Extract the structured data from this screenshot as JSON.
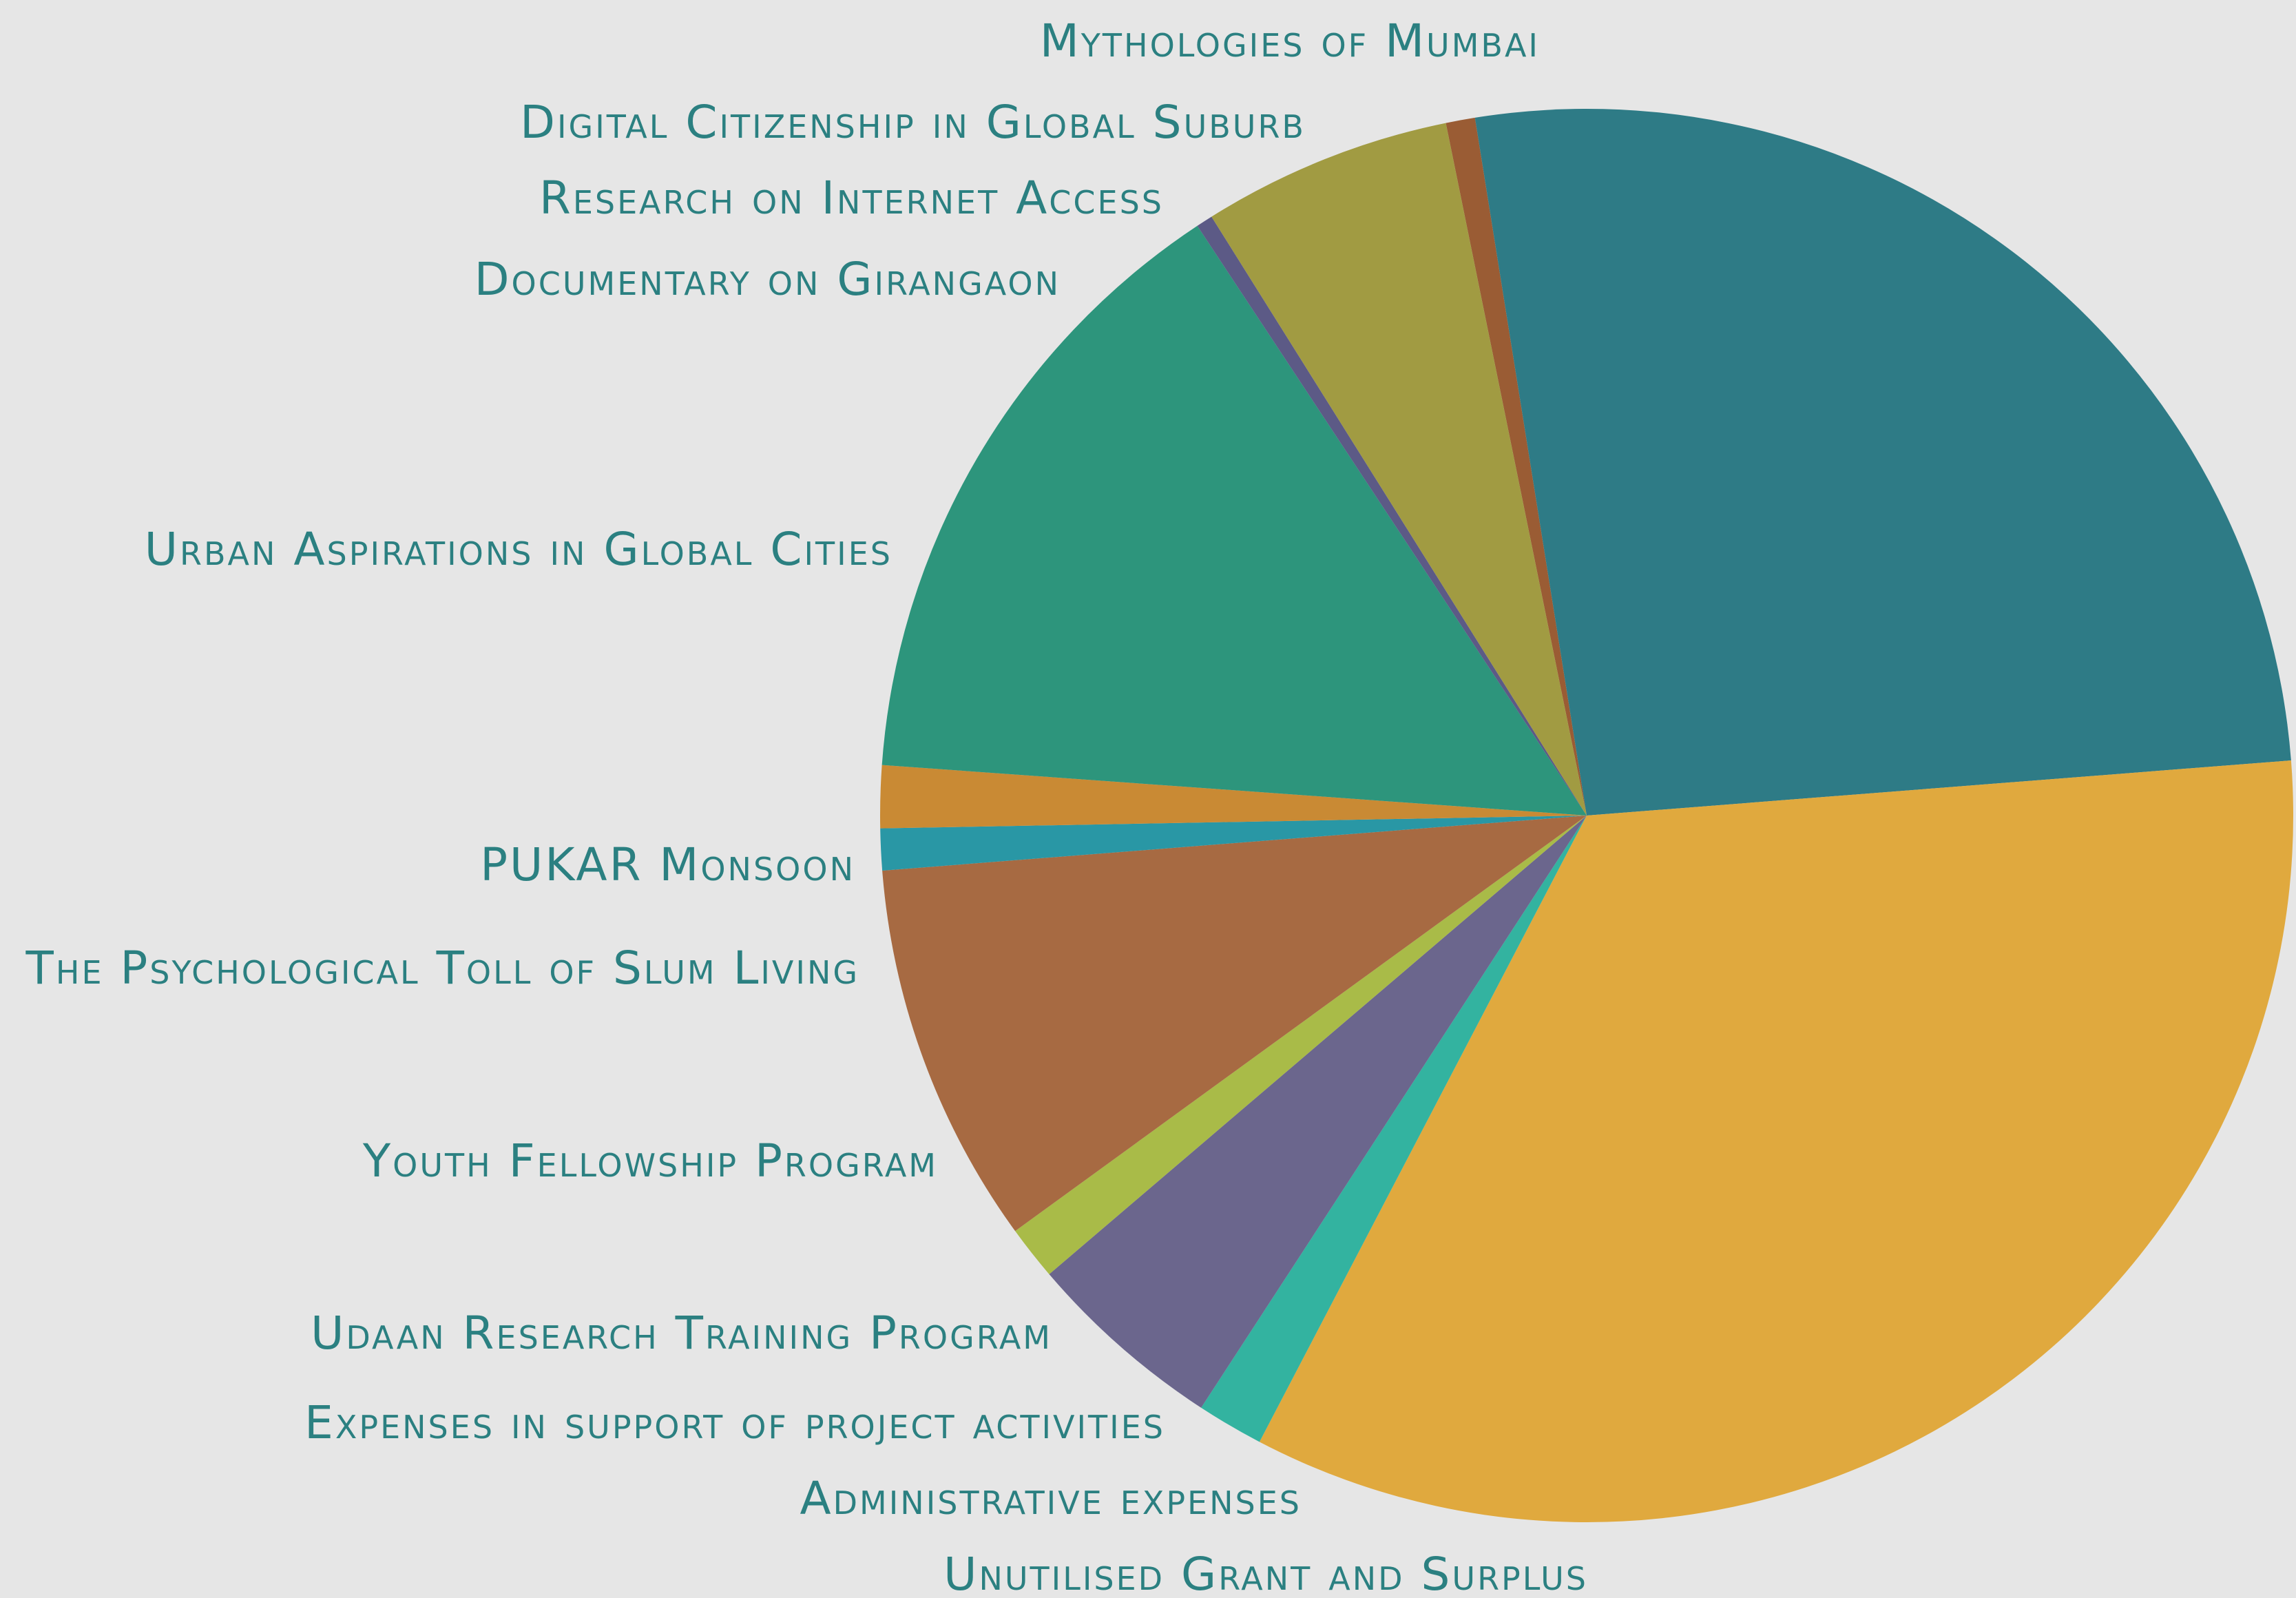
{
  "chart_data": {
    "type": "pie",
    "title": "",
    "start_angle_deg": -101.5,
    "direction": "clockwise",
    "label_color": "#2b8081",
    "background": "#e6e6e6",
    "slices": [
      {
        "label": "Mythologies of Mumbai",
        "value": 0.7,
        "color": "#9a5c34"
      },
      {
        "label": "",
        "value": 27.6,
        "color": "#2e7b86"
      },
      {
        "label": "",
        "value": 35.6,
        "color": "#e0a93e"
      },
      {
        "label": "Unutilised Grant and Surplus",
        "value": 1.6,
        "color": "#33b3a0"
      },
      {
        "label": "Administrative expenses",
        "value": 4.8,
        "color": "#6b668d"
      },
      {
        "label": "Expenses in support of project activities",
        "value": 1.3,
        "color": "#a9bb48"
      },
      {
        "label": "Udaan Research Training Program",
        "value": 9.2,
        "color": "#a76a42"
      },
      {
        "label": "Youth Fellowship Program",
        "value": 1.0,
        "color": "#2997a5"
      },
      {
        "label": "The Psychological Toll of Slum Living",
        "value": 1.5,
        "color": "#c98a34"
      },
      {
        "label": "PUKAR Monsoon",
        "value": 15.3,
        "color": "#2d957c"
      },
      {
        "label": "Urban Aspirations in Global Cities",
        "value": 0.4,
        "color": "#5c5a86"
      },
      {
        "label": "Documentary on Girangaon",
        "value": 6.0,
        "color": "#a19b42"
      },
      {
        "label": "Research on Internet Access",
        "value": 0.0,
        "color": "#a19b42"
      },
      {
        "label": "Digital Citizenship in Global Suburb",
        "value": 0.0,
        "color": "#9a5c34"
      }
    ]
  }
}
